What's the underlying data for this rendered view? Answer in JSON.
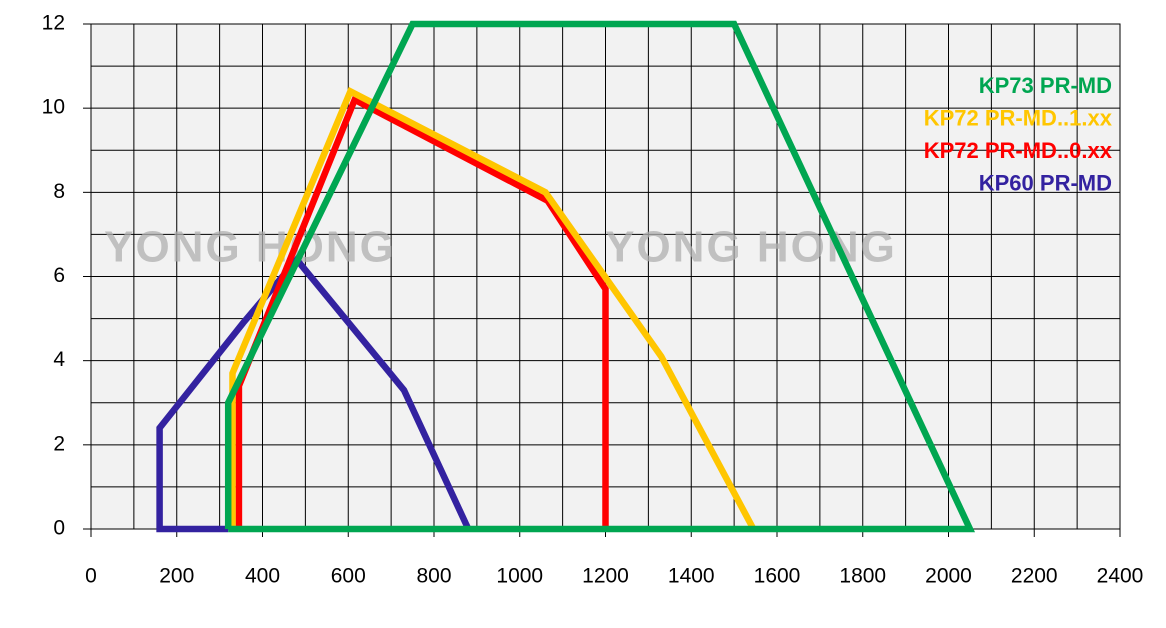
{
  "chart_data": {
    "type": "line",
    "xlim": [
      0,
      2400
    ],
    "xticks": [
      0,
      200,
      400,
      600,
      800,
      1000,
      1200,
      1400,
      1600,
      1800,
      2000,
      2200,
      2400
    ],
    "x_minor_ticks": [
      100,
      300,
      500,
      700,
      900,
      1100,
      1300,
      1500,
      1700,
      1900,
      2100,
      2300
    ],
    "ylim": [
      0,
      12
    ],
    "yticks": [
      0,
      2,
      4,
      6,
      8,
      10,
      12
    ],
    "y_minor_ticks": [
      1,
      3,
      5,
      7,
      9,
      11
    ],
    "grid": true,
    "legend": "upper right",
    "watermarks": [
      "YONG HONG",
      "YONG HONG"
    ],
    "series": [
      {
        "name": "KP73 PR-MD",
        "color": "#00a651",
        "x": [
          320,
          320,
          750,
          1500,
          2050,
          320
        ],
        "values": [
          0,
          3,
          12,
          12,
          0,
          0
        ]
      },
      {
        "name": "KP72 PR-MD..1.xx",
        "color": "#ffc600",
        "x": [
          330,
          330,
          605,
          1060,
          1330,
          1545
        ],
        "values": [
          0,
          3.7,
          10.4,
          8,
          4.1,
          0
        ]
      },
      {
        "name": "KP72 PR-MD..0.xx",
        "color": "#ff0000",
        "x": [
          345,
          345,
          615,
          1065,
          1200,
          1200
        ],
        "values": [
          0,
          3.4,
          10.2,
          7.8,
          5.7,
          0
        ]
      },
      {
        "name": "KP60 PR-MD",
        "color": "#3322a0",
        "x": [
          320,
          160,
          160,
          355,
          480,
          730,
          880
        ],
        "values": [
          0,
          0,
          2.4,
          4.9,
          6.4,
          3.3,
          0
        ]
      }
    ]
  }
}
